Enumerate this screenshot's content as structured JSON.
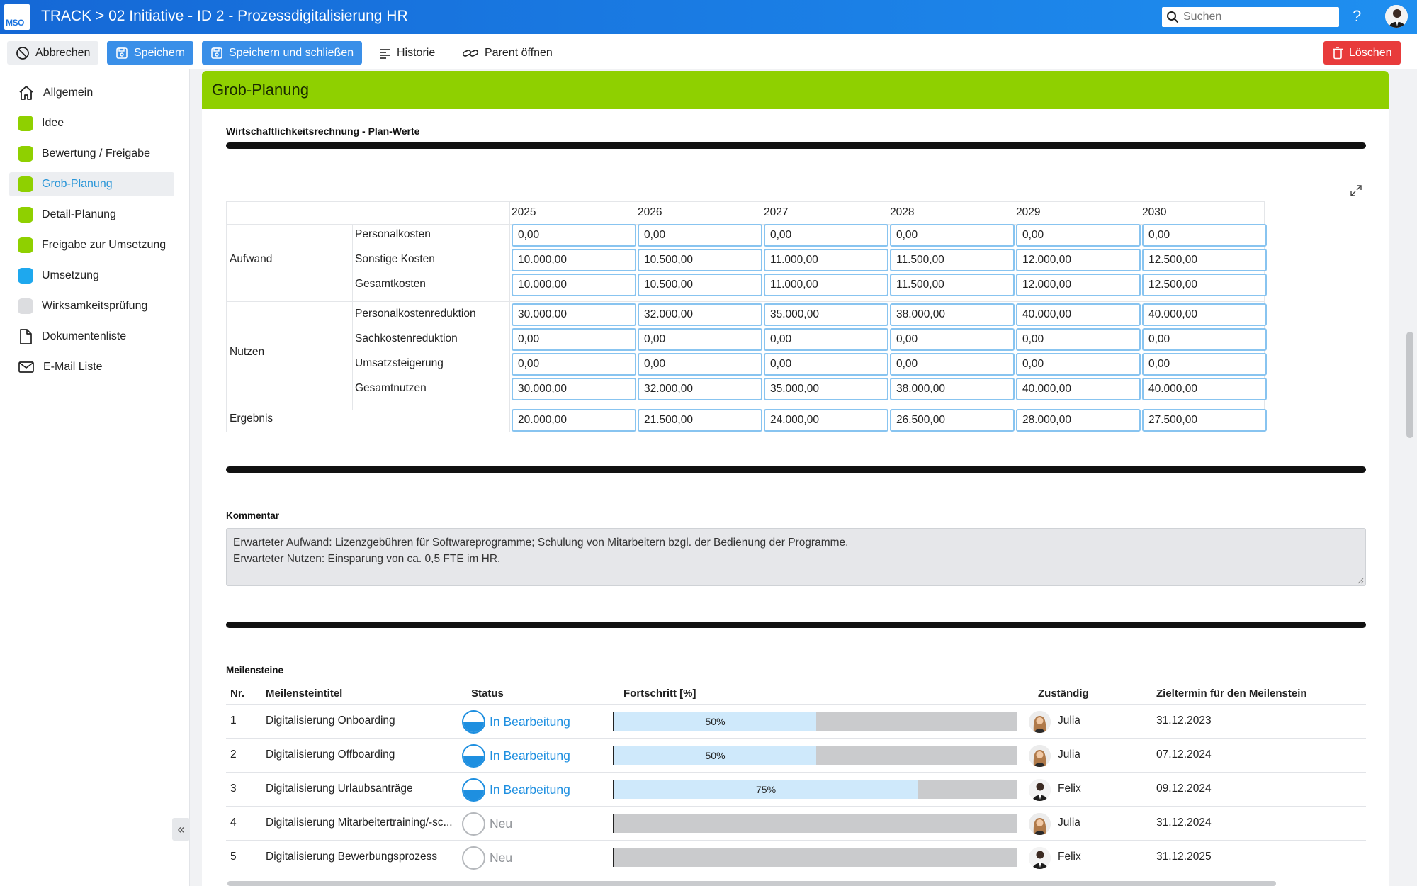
{
  "app": {
    "logo_text": "MSO",
    "title": "TRACK > 02 Initiative - ID 2 - Prozessdigitalisierung HR",
    "search_placeholder": "Suchen",
    "help": "?"
  },
  "toolbar": {
    "cancel": "Abbrechen",
    "save": "Speichern",
    "save_close": "Speichern und schließen",
    "history": "Historie",
    "open_parent": "Parent öffnen",
    "delete": "Löschen"
  },
  "sidebar": {
    "items": [
      {
        "label": "Allgemein",
        "icon": "home-icon"
      },
      {
        "label": "Idee",
        "color": "#8fd000"
      },
      {
        "label": "Bewertung / Freigabe",
        "color": "#8fd000"
      },
      {
        "label": "Grob-Planung",
        "color": "#8fd000"
      },
      {
        "label": "Detail-Planung",
        "color": "#8fd000"
      },
      {
        "label": "Freigabe zur Umsetzung",
        "color": "#8fd000"
      },
      {
        "label": "Umsetzung",
        "color": "#1ea8ee"
      },
      {
        "label": "Wirksamkeitsprüfung",
        "color": "#dcdde0"
      },
      {
        "label": "Dokumentenliste",
        "icon": "document-icon"
      },
      {
        "label": "E-Mail Liste",
        "icon": "mail-icon"
      }
    ],
    "collapse": "«"
  },
  "panel": {
    "title": "Grob-Planung",
    "wr_title": "Wirtschaftlichkeitsrechnung - Plan-Werte"
  },
  "wr": {
    "years": [
      "2025",
      "2026",
      "2027",
      "2028",
      "2029",
      "2030"
    ],
    "groups": {
      "aufwand": "Aufwand",
      "nutzen": "Nutzen",
      "ergebnis": "Ergebnis"
    },
    "rows": [
      {
        "label": "Personalkosten",
        "values": [
          "0,00",
          "0,00",
          "0,00",
          "0,00",
          "0,00",
          "0,00"
        ]
      },
      {
        "label": "Sonstige Kosten",
        "values": [
          "10.000,00",
          "10.500,00",
          "11.000,00",
          "11.500,00",
          "12.000,00",
          "12.500,00"
        ]
      },
      {
        "label": "Gesamtkosten",
        "values": [
          "10.000,00",
          "10.500,00",
          "11.000,00",
          "11.500,00",
          "12.000,00",
          "12.500,00"
        ]
      },
      {
        "label": "Personalkostenreduktion",
        "values": [
          "30.000,00",
          "32.000,00",
          "35.000,00",
          "38.000,00",
          "40.000,00",
          "40.000,00"
        ]
      },
      {
        "label": "Sachkostenreduktion",
        "values": [
          "0,00",
          "0,00",
          "0,00",
          "0,00",
          "0,00",
          "0,00"
        ]
      },
      {
        "label": "Umsatzsteigerung",
        "values": [
          "0,00",
          "0,00",
          "0,00",
          "0,00",
          "0,00",
          "0,00"
        ]
      },
      {
        "label": "Gesamtnutzen",
        "values": [
          "30.000,00",
          "32.000,00",
          "35.000,00",
          "38.000,00",
          "40.000,00",
          "40.000,00"
        ]
      },
      {
        "label": "",
        "values": [
          "20.000,00",
          "21.500,00",
          "24.000,00",
          "26.500,00",
          "28.000,00",
          "27.500,00"
        ]
      }
    ]
  },
  "comment": {
    "label": "Kommentar",
    "line1": "Erwarteter Aufwand: Lizenzgebühren für Softwareprogramme; Schulung von Mitarbeitern bzgl. der Bedienung der Programme.",
    "line2": "Erwarteter Nutzen: Einsparung von ca. 0,5 FTE im HR."
  },
  "milestones": {
    "label": "Meilensteine",
    "headers": {
      "nr": "Nr.",
      "title": "Meilensteintitel",
      "status": "Status",
      "progress": "Fortschritt [%]",
      "owner": "Zuständig",
      "due": "Zieltermin für den Meilenstein"
    },
    "rows": [
      {
        "nr": "1",
        "title": "Digitalisierung Onboarding",
        "status": "In Bearbeitung",
        "progress": 50,
        "progress_label": "50%",
        "owner": "Julia",
        "due": "31.12.2023"
      },
      {
        "nr": "2",
        "title": "Digitalisierung Offboarding",
        "status": "In Bearbeitung",
        "progress": 50,
        "progress_label": "50%",
        "owner": "Julia",
        "due": "07.12.2024"
      },
      {
        "nr": "3",
        "title": "Digitalisierung Urlaubsanträge",
        "status": "In Bearbeitung",
        "progress": 75,
        "progress_label": "75%",
        "owner": "Felix",
        "due": "09.12.2024"
      },
      {
        "nr": "4",
        "title": "Digitalisierung Mitarbeitertraining/-sc...",
        "status": "Neu",
        "progress": 0,
        "progress_label": "",
        "owner": "Julia",
        "due": "31.12.2024"
      },
      {
        "nr": "5",
        "title": "Digitalisierung Bewerbungsprozess",
        "status": "Neu",
        "progress": 0,
        "progress_label": "",
        "owner": "Felix",
        "due": "31.12.2025"
      }
    ]
  }
}
